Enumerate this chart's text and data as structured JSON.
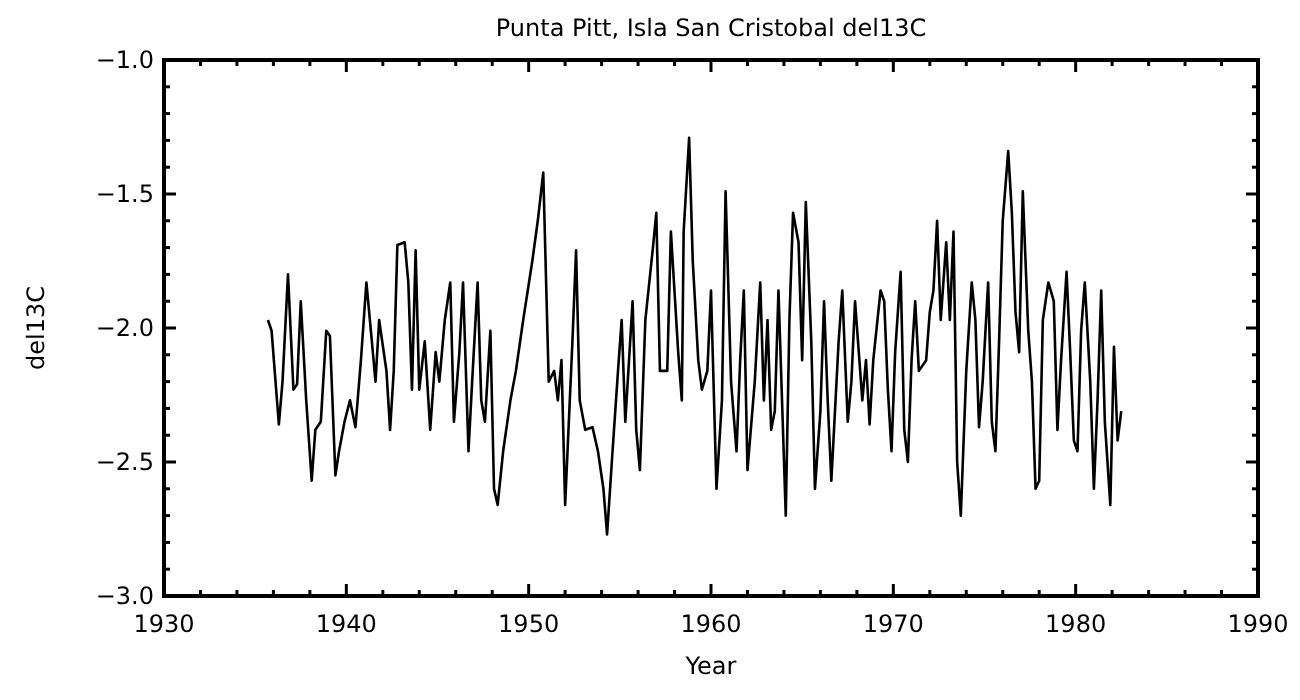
{
  "chart_data": {
    "type": "line",
    "title": "Punta Pitt, Isla San Cristobal del13C",
    "xlabel": "Year",
    "ylabel": "del13C",
    "xlim": [
      1930,
      1990
    ],
    "xticks": [
      1930,
      {
        "value": 1932,
        "label": null
      },
      {
        "value": 1934,
        "label": null
      },
      {
        "value": 1936,
        "label": null
      },
      {
        "value": 1938,
        "label": null
      },
      1940,
      {
        "value": 1942,
        "label": null
      },
      {
        "value": 1944,
        "label": null
      },
      {
        "value": 1946,
        "label": null
      },
      {
        "value": 1948,
        "label": null
      },
      1950,
      {
        "value": 1952,
        "label": null
      },
      {
        "value": 1954,
        "label": null
      },
      {
        "value": 1956,
        "label": null
      },
      {
        "value": 1958,
        "label": null
      },
      1960,
      {
        "value": 1962,
        "label": null
      },
      {
        "value": 1964,
        "label": null
      },
      {
        "value": 1966,
        "label": null
      },
      {
        "value": 1968,
        "label": null
      },
      1970,
      {
        "value": 1972,
        "label": null
      },
      {
        "value": 1974,
        "label": null
      },
      {
        "value": 1976,
        "label": null
      },
      {
        "value": 1978,
        "label": null
      },
      1980,
      {
        "value": 1982,
        "label": null
      },
      {
        "value": 1984,
        "label": null
      },
      {
        "value": 1986,
        "label": null
      },
      {
        "value": 1988,
        "label": null
      },
      1990
    ],
    "ylim": [
      -3.0,
      -1.0
    ],
    "yticks": [
      {
        "value": -3.0,
        "label": "−3.0"
      },
      {
        "value": -2.9,
        "label": null
      },
      {
        "value": -2.8,
        "label": null
      },
      {
        "value": -2.7,
        "label": null
      },
      {
        "value": -2.6,
        "label": null
      },
      {
        "value": -2.5,
        "label": "−2.5"
      },
      {
        "value": -2.4,
        "label": null
      },
      {
        "value": -2.3,
        "label": null
      },
      {
        "value": -2.2,
        "label": null
      },
      {
        "value": -2.1,
        "label": null
      },
      {
        "value": -2.0,
        "label": "−2.0"
      },
      {
        "value": -1.9,
        "label": null
      },
      {
        "value": -1.8,
        "label": null
      },
      {
        "value": -1.7,
        "label": null
      },
      {
        "value": -1.6,
        "label": null
      },
      {
        "value": -1.5,
        "label": "−1.5"
      },
      {
        "value": -1.4,
        "label": null
      },
      {
        "value": -1.3,
        "label": null
      },
      {
        "value": -1.2,
        "label": null
      },
      {
        "value": -1.1,
        "label": null
      },
      {
        "value": -1.0,
        "label": "−1.0"
      }
    ],
    "grid": false,
    "marker": "none",
    "line_style": "solid",
    "series": [
      {
        "color": "#000000",
        "x": [
          1935.7,
          1935.9,
          1936.3,
          1936.5,
          1936.8,
          1937.1,
          1937.3,
          1937.5,
          1937.8,
          1938.1,
          1938.3,
          1938.6,
          1938.9,
          1939.1,
          1939.4,
          1939.6,
          1939.9,
          1940.2,
          1940.5,
          1940.8,
          1941.1,
          1941.4,
          1941.6,
          1941.8,
          1942.2,
          1942.4,
          1942.6,
          1942.8,
          1943.2,
          1943.4,
          1943.6,
          1943.8,
          1944.0,
          1944.3,
          1944.6,
          1944.9,
          1945.1,
          1945.4,
          1945.7,
          1945.9,
          1946.2,
          1946.4,
          1946.7,
          1946.9,
          1947.2,
          1947.4,
          1947.6,
          1947.9,
          1948.1,
          1948.3,
          1948.6,
          1949.0,
          1949.3,
          1949.7,
          1950.2,
          1950.5,
          1950.8,
          1951.1,
          1951.4,
          1951.6,
          1951.8,
          1952.0,
          1952.4,
          1952.6,
          1952.8,
          1953.1,
          1953.5,
          1953.8,
          1954.1,
          1954.3,
          1954.6,
          1954.9,
          1955.1,
          1955.3,
          1955.7,
          1955.9,
          1956.1,
          1956.4,
          1956.8,
          1957.0,
          1957.2,
          1957.6,
          1957.8,
          1958.2,
          1958.4,
          1958.5,
          1958.8,
          1959.0,
          1959.3,
          1959.5,
          1959.8,
          1960.0,
          1960.3,
          1960.6,
          1960.8,
          1961.1,
          1961.4,
          1961.6,
          1961.8,
          1962.0,
          1962.4,
          1962.7,
          1962.9,
          1963.1,
          1963.3,
          1963.5,
          1963.7,
          1964.1,
          1964.3,
          1964.5,
          1964.8,
          1965.0,
          1965.2,
          1965.5,
          1965.7,
          1966.0,
          1966.2,
          1966.4,
          1966.6,
          1967.0,
          1967.2,
          1967.5,
          1967.7,
          1967.9,
          1968.3,
          1968.5,
          1968.7,
          1968.9,
          1969.3,
          1969.5,
          1969.7,
          1969.9,
          1970.1,
          1970.4,
          1970.6,
          1970.8,
          1971.0,
          1971.2,
          1971.4,
          1971.8,
          1972.0,
          1972.2,
          1972.4,
          1972.6,
          1972.9,
          1973.1,
          1973.3,
          1973.5,
          1973.7,
          1974.0,
          1974.3,
          1974.5,
          1974.7,
          1974.9,
          1975.2,
          1975.4,
          1975.6,
          1975.8,
          1976.0,
          1976.3,
          1976.5,
          1976.7,
          1976.9,
          1977.1,
          1977.4,
          1977.6,
          1977.8,
          1978.0,
          1978.2,
          1978.5,
          1978.8,
          1979.0,
          1979.2,
          1979.5,
          1979.7,
          1979.9,
          1980.1,
          1980.3,
          1980.5,
          1980.8,
          1981.0,
          1981.2,
          1981.4,
          1981.6,
          1981.9,
          1982.1,
          1982.3,
          1982.5
        ],
        "values": [
          -1.97,
          -2.01,
          -2.36,
          -2.2,
          -1.8,
          -2.23,
          -2.21,
          -1.9,
          -2.27,
          -2.57,
          -2.38,
          -2.35,
          -2.01,
          -2.03,
          -2.55,
          -2.46,
          -2.35,
          -2.27,
          -2.37,
          -2.12,
          -1.83,
          -2.05,
          -2.2,
          -1.97,
          -2.16,
          -2.38,
          -2.16,
          -1.69,
          -1.68,
          -1.83,
          -2.23,
          -1.71,
          -2.23,
          -2.05,
          -2.38,
          -2.09,
          -2.2,
          -1.97,
          -1.83,
          -2.35,
          -2.09,
          -1.83,
          -2.46,
          -2.2,
          -1.83,
          -2.27,
          -2.35,
          -2.01,
          -2.6,
          -2.66,
          -2.46,
          -2.27,
          -2.16,
          -1.97,
          -1.75,
          -1.6,
          -1.42,
          -2.2,
          -2.16,
          -2.27,
          -2.12,
          -2.66,
          -2.05,
          -1.71,
          -2.27,
          -2.38,
          -2.37,
          -2.46,
          -2.6,
          -2.77,
          -2.46,
          -2.16,
          -1.97,
          -2.35,
          -1.9,
          -2.38,
          -2.53,
          -1.97,
          -1.71,
          -1.57,
          -2.16,
          -2.16,
          -1.64,
          -2.09,
          -2.27,
          -1.64,
          -1.29,
          -1.75,
          -2.12,
          -2.23,
          -2.16,
          -1.86,
          -2.6,
          -2.27,
          -1.49,
          -2.2,
          -2.46,
          -2.12,
          -1.86,
          -2.53,
          -2.2,
          -1.83,
          -2.27,
          -1.97,
          -2.38,
          -2.31,
          -1.86,
          -2.7,
          -1.97,
          -1.57,
          -1.68,
          -2.12,
          -1.53,
          -2.05,
          -2.6,
          -2.31,
          -1.9,
          -2.27,
          -2.57,
          -2.05,
          -1.86,
          -2.35,
          -2.2,
          -1.9,
          -2.27,
          -2.12,
          -2.36,
          -2.12,
          -1.86,
          -1.9,
          -2.23,
          -2.46,
          -2.09,
          -1.79,
          -2.38,
          -2.5,
          -2.12,
          -1.9,
          -2.16,
          -2.12,
          -1.94,
          -1.86,
          -1.6,
          -1.97,
          -1.68,
          -1.97,
          -1.64,
          -2.5,
          -2.7,
          -2.16,
          -1.83,
          -1.97,
          -2.37,
          -2.2,
          -1.83,
          -2.35,
          -2.46,
          -2.05,
          -1.6,
          -1.34,
          -1.57,
          -1.94,
          -2.09,
          -1.49,
          -2.01,
          -2.2,
          -2.6,
          -2.57,
          -1.97,
          -1.83,
          -1.9,
          -2.38,
          -2.12,
          -1.79,
          -2.09,
          -2.42,
          -2.46,
          -2.01,
          -1.83,
          -2.2,
          -2.6,
          -2.27,
          -1.86,
          -2.35,
          -2.66,
          -2.07,
          -2.42,
          -2.31
        ]
      }
    ]
  }
}
